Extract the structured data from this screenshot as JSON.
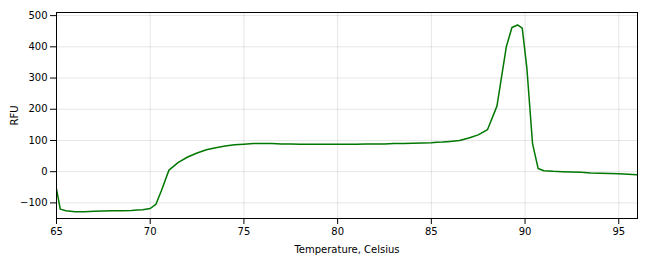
{
  "chart_data": {
    "type": "line",
    "xlabel": "Temperature, Celsius",
    "ylabel": "RFU",
    "x": [
      65.0,
      65.2,
      65.5,
      66.0,
      66.5,
      67.0,
      67.5,
      68.0,
      68.5,
      69.0,
      69.3,
      69.6,
      70.0,
      70.3,
      70.6,
      71.0,
      71.5,
      72.0,
      72.5,
      73.0,
      73.5,
      74.0,
      74.5,
      75.0,
      75.5,
      76.0,
      76.5,
      77.0,
      77.5,
      78.0,
      78.5,
      79.0,
      79.5,
      80.0,
      80.5,
      81.0,
      81.5,
      82.0,
      82.5,
      83.0,
      83.5,
      84.0,
      84.5,
      85.0,
      85.3,
      85.6,
      86.0,
      86.5,
      87.0,
      87.5,
      88.0,
      88.5,
      89.0,
      89.3,
      89.6,
      89.85,
      90.1,
      90.4,
      90.7,
      91.0,
      91.5,
      92.0,
      92.5,
      93.0,
      93.5,
      94.0,
      94.5,
      95.0,
      95.5,
      96.0
    ],
    "values": [
      -55,
      -120,
      -125,
      -128,
      -128,
      -127,
      -126,
      -125,
      -125,
      -124,
      -123,
      -122,
      -118,
      -105,
      -60,
      5,
      30,
      47,
      60,
      70,
      77,
      82,
      86,
      88,
      90,
      90,
      90,
      89,
      89,
      88,
      88,
      88,
      88,
      88,
      88,
      88,
      89,
      89,
      89,
      90,
      90,
      91,
      92,
      93,
      94,
      95,
      97,
      100,
      108,
      118,
      135,
      210,
      400,
      462,
      470,
      460,
      330,
      90,
      10,
      3,
      1,
      0,
      -1,
      -2,
      -4,
      -5,
      -6,
      -7,
      -8,
      -10
    ],
    "color": "#007700",
    "xlim": [
      65,
      96
    ],
    "ylim": [
      -150,
      510
    ],
    "xticks": [
      65,
      70,
      75,
      80,
      85,
      90,
      95
    ],
    "yticks": [
      -100,
      0,
      100,
      200,
      300,
      400,
      500
    ],
    "grid": true
  }
}
